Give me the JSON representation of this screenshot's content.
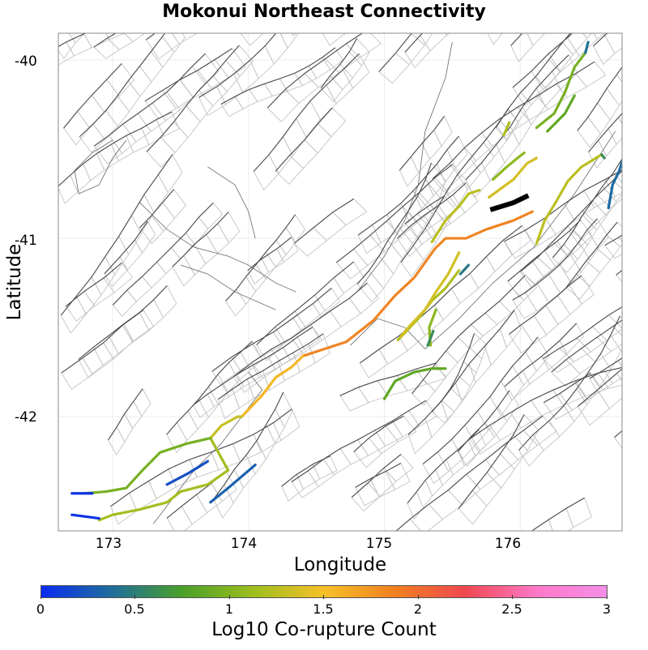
{
  "title": "Mokonui Northeast Connectivity",
  "axes": {
    "xlabel": "Longitude",
    "ylabel": "Latitude",
    "xticks": [
      "173",
      "174",
      "175",
      "176"
    ],
    "yticks": [
      "-40",
      "-41",
      "-42"
    ]
  },
  "colorbar": {
    "label": "Log10 Co-rupture Count",
    "ticks": [
      "0",
      "0.5",
      "1",
      "1.5",
      "2",
      "2.5",
      "3"
    ],
    "stops": [
      "#0a2cf0",
      "#1e6e9c",
      "#4aa028",
      "#9ebe1e",
      "#f6c028",
      "#f08020",
      "#f04850",
      "#ff78c8",
      "#f48ee8"
    ]
  },
  "chart_data": {
    "type": "map",
    "extent": {
      "lon": [
        172.6,
        176.75
      ],
      "lat": [
        -42.64,
        -39.85
      ]
    },
    "highlighted_source": {
      "name": "Mokonui Northeast",
      "color": "#000000",
      "trace": [
        [
          175.78,
          -40.84
        ],
        [
          175.95,
          -40.8
        ],
        [
          176.06,
          -40.76
        ]
      ]
    },
    "colored_ruptures": [
      {
        "value": 1.85,
        "trace": [
          [
            174.4,
            -41.66
          ],
          [
            174.72,
            -41.58
          ],
          [
            174.92,
            -41.46
          ],
          [
            175.08,
            -41.32
          ],
          [
            175.22,
            -41.22
          ],
          [
            175.37,
            -41.06
          ],
          [
            175.45,
            -41.0
          ],
          [
            175.6,
            -41.0
          ],
          [
            175.75,
            -40.95
          ],
          [
            175.95,
            -40.9
          ],
          [
            176.09,
            -40.85
          ]
        ]
      },
      {
        "value": 1.55,
        "trace": [
          [
            173.95,
            -42.0
          ],
          [
            174.1,
            -41.88
          ],
          [
            174.2,
            -41.78
          ],
          [
            174.32,
            -41.72
          ],
          [
            174.4,
            -41.66
          ]
        ]
      },
      {
        "value": 1.3,
        "trace": [
          [
            173.72,
            -42.12
          ],
          [
            173.8,
            -42.05
          ],
          [
            173.92,
            -42.0
          ],
          [
            173.95,
            -42.0
          ]
        ]
      },
      {
        "value": 1.15,
        "trace": [
          [
            173.72,
            -42.12
          ],
          [
            173.85,
            -42.3
          ],
          [
            173.7,
            -42.38
          ],
          [
            173.5,
            -42.42
          ],
          [
            173.4,
            -42.48
          ],
          [
            173.2,
            -42.52
          ],
          [
            173.0,
            -42.55
          ],
          [
            172.9,
            -42.58
          ]
        ]
      },
      {
        "value": 0.95,
        "trace": [
          [
            173.72,
            -42.12
          ],
          [
            173.55,
            -42.15
          ],
          [
            173.35,
            -42.2
          ],
          [
            173.22,
            -42.3
          ],
          [
            173.1,
            -42.4
          ],
          [
            172.95,
            -42.42
          ],
          [
            172.78,
            -42.43
          ]
        ]
      },
      {
        "value": 0.3,
        "trace": [
          [
            173.72,
            -42.48
          ],
          [
            173.85,
            -42.4
          ],
          [
            174.05,
            -42.27
          ]
        ]
      },
      {
        "value": 0.2,
        "trace": [
          [
            173.4,
            -42.38
          ],
          [
            173.55,
            -42.32
          ],
          [
            173.7,
            -42.25
          ]
        ]
      },
      {
        "value": 0.05,
        "trace": [
          [
            172.7,
            -42.43
          ],
          [
            172.85,
            -42.43
          ]
        ]
      },
      {
        "value": 0.05,
        "trace": [
          [
            172.7,
            -42.55
          ],
          [
            172.9,
            -42.57
          ]
        ]
      },
      {
        "value": 1.2,
        "trace": [
          [
            175.55,
            -41.18
          ],
          [
            175.45,
            -41.28
          ],
          [
            175.35,
            -41.35
          ],
          [
            175.25,
            -41.45
          ],
          [
            175.15,
            -41.53
          ],
          [
            175.1,
            -41.57
          ]
        ]
      },
      {
        "value": 1.35,
        "trace": [
          [
            175.55,
            -41.08
          ],
          [
            175.47,
            -41.2
          ],
          [
            175.38,
            -41.3
          ],
          [
            175.3,
            -41.4
          ],
          [
            175.2,
            -41.48
          ],
          [
            175.12,
            -41.55
          ]
        ]
      },
      {
        "value": 1.05,
        "trace": [
          [
            175.38,
            -41.4
          ],
          [
            175.33,
            -41.5
          ],
          [
            175.34,
            -41.6
          ]
        ]
      },
      {
        "value": 0.6,
        "trace": [
          [
            175.32,
            -41.6
          ],
          [
            175.36,
            -41.52
          ]
        ]
      },
      {
        "value": 0.45,
        "trace": [
          [
            175.62,
            -41.15
          ],
          [
            175.56,
            -41.2
          ]
        ]
      },
      {
        "value": 0.85,
        "trace": [
          [
            175.0,
            -41.9
          ],
          [
            175.08,
            -41.8
          ],
          [
            175.22,
            -41.75
          ],
          [
            175.35,
            -41.73
          ],
          [
            175.45,
            -41.73
          ]
        ]
      },
      {
        "value": 1.25,
        "trace": [
          [
            175.35,
            -41.02
          ],
          [
            175.45,
            -40.9
          ],
          [
            175.55,
            -40.82
          ],
          [
            175.62,
            -40.75
          ],
          [
            175.7,
            -40.73
          ]
        ]
      },
      {
        "value": 1.35,
        "trace": [
          [
            175.77,
            -40.77
          ],
          [
            175.86,
            -40.72
          ],
          [
            175.95,
            -40.67
          ],
          [
            176.05,
            -40.58
          ],
          [
            176.12,
            -40.55
          ]
        ]
      },
      {
        "value": 1.05,
        "trace": [
          [
            175.8,
            -40.67
          ],
          [
            175.9,
            -40.6
          ],
          [
            175.98,
            -40.55
          ],
          [
            176.03,
            -40.52
          ]
        ]
      },
      {
        "value": 0.95,
        "trace": [
          [
            176.12,
            -40.38
          ],
          [
            176.25,
            -40.3
          ],
          [
            176.33,
            -40.18
          ],
          [
            176.4,
            -40.04
          ],
          [
            176.48,
            -39.96
          ]
        ]
      },
      {
        "value": 0.4,
        "trace": [
          [
            176.48,
            -39.96
          ],
          [
            176.5,
            -39.9
          ]
        ]
      },
      {
        "value": 0.85,
        "trace": [
          [
            176.2,
            -40.4
          ],
          [
            176.33,
            -40.3
          ],
          [
            176.4,
            -40.2
          ]
        ]
      },
      {
        "value": 1.25,
        "trace": [
          [
            176.12,
            -41.03
          ],
          [
            176.18,
            -40.9
          ],
          [
            176.26,
            -40.8
          ],
          [
            176.35,
            -40.68
          ],
          [
            176.45,
            -40.6
          ],
          [
            176.6,
            -40.53
          ]
        ]
      },
      {
        "value": 0.6,
        "trace": [
          [
            176.6,
            -40.53
          ],
          [
            176.62,
            -40.55
          ]
        ]
      },
      {
        "value": 0.35,
        "trace": [
          [
            176.65,
            -40.83
          ],
          [
            176.68,
            -40.7
          ],
          [
            176.73,
            -40.62
          ],
          [
            176.75,
            -40.57
          ]
        ]
      },
      {
        "value": 1.2,
        "trace": [
          [
            175.88,
            -40.42
          ],
          [
            175.92,
            -40.35
          ]
        ]
      }
    ]
  }
}
